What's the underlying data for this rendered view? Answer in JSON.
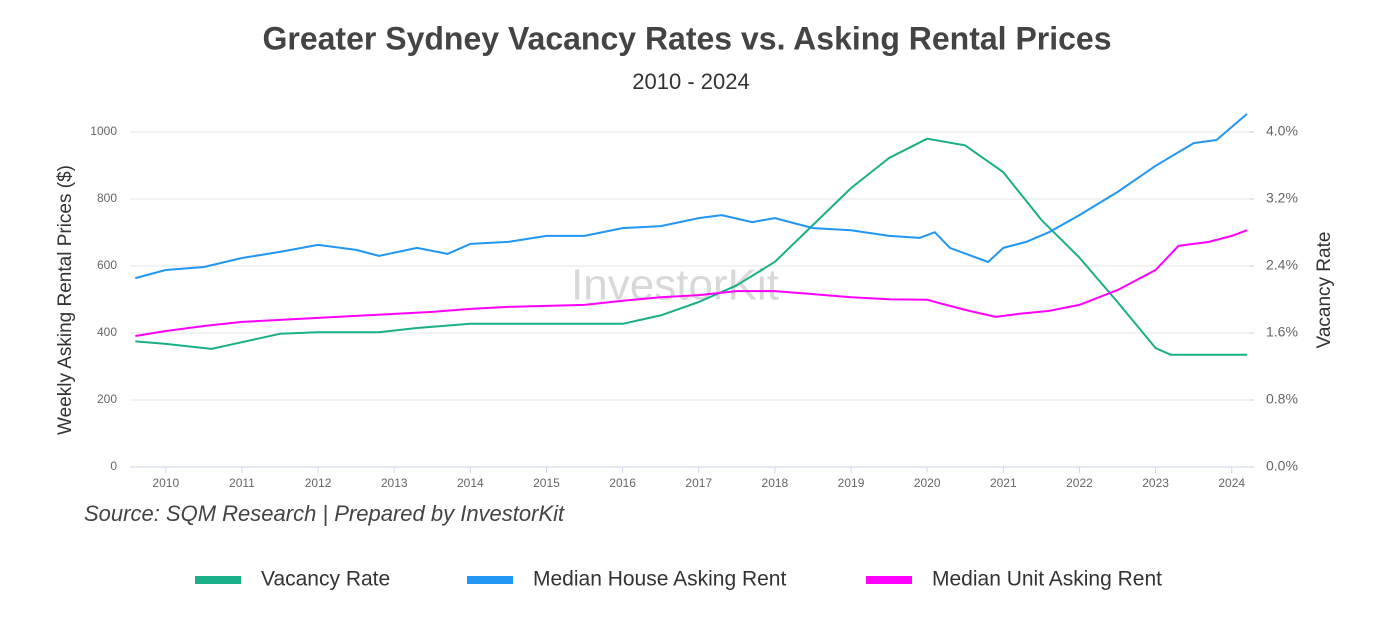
{
  "chart_data": {
    "type": "line",
    "title": "Greater Sydney Vacancy Rates vs. Asking Rental Prices",
    "subtitle": "2010 - 2024",
    "y_label": "Weekly Asking Rental Prices ($)",
    "y2_label": "Vacancy Rate",
    "source": "Source: SQM Research | Prepared by InvestorKit",
    "watermark": "InvestorKit",
    "xlim": [
      2009.53,
      2024.24
    ],
    "xticks": [
      2010,
      2011,
      2012,
      2013,
      2014,
      2015,
      2016,
      2017,
      2018,
      2019,
      2020,
      2021,
      2022,
      2023,
      2024
    ],
    "ylim": [
      0,
      1000
    ],
    "yticks": [
      0,
      200,
      400,
      600,
      800,
      1000
    ],
    "y2lim": [
      0,
      4
    ],
    "y2ticks": [
      {
        "value": 0,
        "label": "0.0%"
      },
      {
        "value": 0.8,
        "label": "0.8%"
      },
      {
        "value": 1.6,
        "label": "1.6%"
      },
      {
        "value": 2.4,
        "label": "2.4%"
      },
      {
        "value": 3.2,
        "label": "3.2%"
      },
      {
        "value": 4,
        "label": "4.0%"
      }
    ],
    "grid": true,
    "legend": "bottom",
    "series": [
      {
        "name": "Vacancy Rate",
        "color": "#1aaf86",
        "axis": "y2",
        "x": [
          2009.6,
          2010,
          2010.6,
          2011,
          2011.5,
          2012,
          2012.8,
          2013.3,
          2014,
          2016,
          2016.5,
          2017,
          2017.5,
          2018,
          2018.5,
          2019,
          2019.5,
          2020,
          2020.5,
          2021,
          2021.5,
          2022,
          2022.5,
          2023,
          2023.2,
          2024.2
        ],
        "values": [
          1.5,
          1.47,
          1.41,
          1.49,
          1.59,
          1.61,
          1.61,
          1.66,
          1.71,
          1.71,
          1.81,
          1.97,
          2.17,
          2.45,
          2.89,
          3.33,
          3.69,
          3.92,
          3.84,
          3.52,
          2.95,
          2.5,
          1.97,
          1.42,
          1.34,
          1.34
        ]
      },
      {
        "name": "Median House Asking Rent",
        "color": "#2196f3",
        "x": [
          2009.6,
          2010,
          2010.5,
          2011,
          2011.5,
          2012,
          2012.5,
          2012.8,
          2013.3,
          2013.7,
          2014,
          2014.5,
          2015,
          2015.5,
          2016,
          2016.5,
          2017,
          2017.3,
          2017.7,
          2018,
          2018.5,
          2019,
          2019.5,
          2019.9,
          2020.1,
          2020.3,
          2020.8,
          2021,
          2021.3,
          2021.6,
          2022,
          2022.5,
          2023,
          2023.5,
          2023.8,
          2024,
          2024.2
        ],
        "values": [
          564,
          588,
          597,
          624,
          642,
          663,
          648,
          630,
          654,
          636,
          666,
          672,
          690,
          690,
          713,
          719,
          743,
          752,
          731,
          743,
          713,
          707,
          690,
          684,
          701,
          654,
          612,
          654,
          672,
          701,
          752,
          821,
          899,
          967,
          976,
          1015,
          1054
        ]
      },
      {
        "name": "Median Unit Asking Rent",
        "color": "#ff00ff",
        "x": [
          2009.6,
          2010,
          2010.5,
          2011,
          2011.5,
          2012,
          2012.5,
          2013,
          2013.5,
          2014,
          2014.5,
          2015,
          2015.5,
          2016,
          2016.5,
          2017,
          2017.5,
          2018,
          2018.5,
          2019,
          2019.5,
          2020,
          2020.2,
          2020.5,
          2020.9,
          2021.2,
          2021.6,
          2022,
          2022.5,
          2023,
          2023.3,
          2023.7,
          2024,
          2024.2
        ],
        "values": [
          391,
          406,
          421,
          433,
          439,
          445,
          451,
          457,
          463,
          472,
          478,
          481,
          484,
          496,
          507,
          513,
          525,
          525,
          516,
          507,
          501,
          499,
          487,
          469,
          448,
          457,
          466,
          484,
          528,
          588,
          660,
          672,
          690,
          707
        ]
      }
    ]
  }
}
